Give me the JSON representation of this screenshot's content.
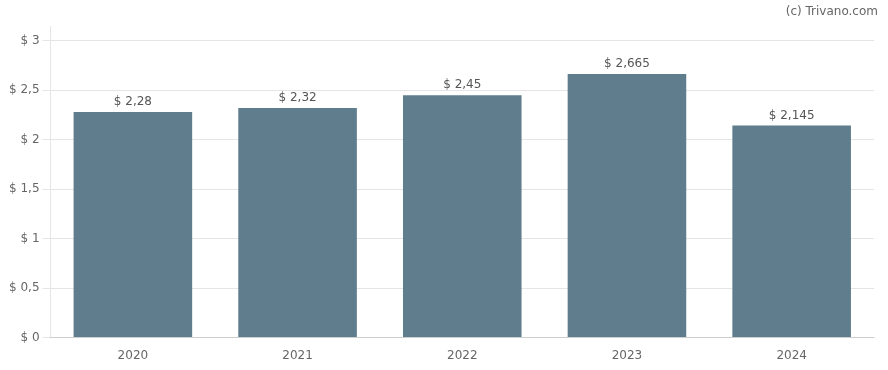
{
  "chart_data": {
    "type": "bar",
    "categories": [
      "2020",
      "2021",
      "2022",
      "2023",
      "2024"
    ],
    "values": [
      2.28,
      2.32,
      2.45,
      2.665,
      2.145
    ],
    "value_labels": [
      "$ 2,28",
      "$ 2,32",
      "$ 2,45",
      "$ 2,665",
      "$ 2,145"
    ],
    "data_labels": true,
    "color": "#5f7d8c",
    "ylim": [
      0,
      3.15
    ],
    "yticks": [
      {
        "value": 0,
        "label": "$ 0"
      },
      {
        "value": 0.5,
        "label": "$ 0,5"
      },
      {
        "value": 1.0,
        "label": "$ 1"
      },
      {
        "value": 1.5,
        "label": "$ 1,5"
      },
      {
        "value": 2.0,
        "label": "$ 2"
      },
      {
        "value": 2.5,
        "label": "$ 2,5"
      },
      {
        "value": 3.0,
        "label": "$ 3"
      }
    ],
    "grid": true,
    "annotations": [
      "(c) Trivano.com"
    ]
  }
}
